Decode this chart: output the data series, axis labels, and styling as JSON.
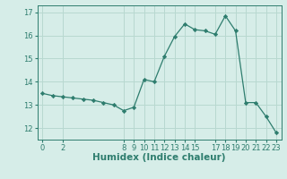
{
  "x": [
    0,
    1,
    2,
    3,
    4,
    5,
    6,
    7,
    8,
    9,
    10,
    11,
    12,
    13,
    14,
    15,
    16,
    17,
    18,
    19,
    20,
    21,
    22,
    23
  ],
  "y": [
    13.5,
    13.4,
    13.35,
    13.3,
    13.25,
    13.2,
    13.1,
    13.0,
    12.75,
    12.9,
    14.1,
    14.0,
    15.1,
    15.95,
    16.5,
    16.25,
    16.2,
    16.05,
    16.85,
    16.2,
    13.1,
    13.1,
    12.5,
    11.8
  ],
  "xlabel": "Humidex (Indice chaleur)",
  "bg_color": "#d6ede8",
  "line_color": "#2e7d6e",
  "grid_color": "#b8d8d0",
  "ylim": [
    11.5,
    17.3
  ],
  "yticks": [
    12,
    13,
    14,
    15,
    16,
    17
  ],
  "xticks": [
    0,
    2,
    8,
    9,
    10,
    11,
    12,
    13,
    14,
    15,
    17,
    18,
    19,
    20,
    21,
    22,
    23
  ],
  "tick_fontsize": 6,
  "xlabel_fontsize": 7.5
}
